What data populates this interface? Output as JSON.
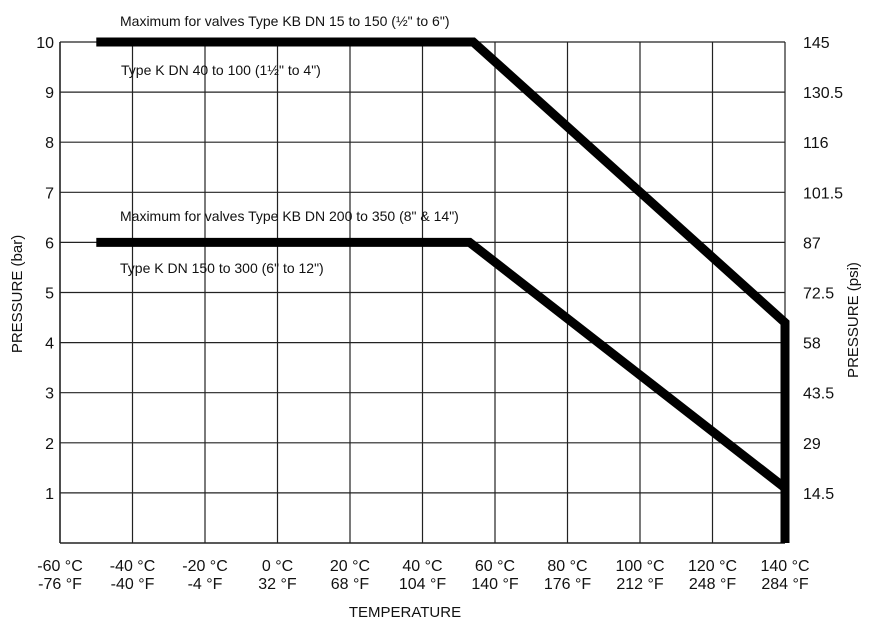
{
  "chart_data": {
    "type": "line",
    "title": "",
    "xlabel": "TEMPERATURE",
    "ylabel": "PRESSURE (bar)",
    "y2label": "PRESSURE (psi)",
    "xlim": [
      -60,
      140
    ],
    "ylim": [
      0,
      10
    ],
    "grid": true,
    "x_ticks_c": [
      "-60 °C",
      "-40 °C",
      "-20 °C",
      "0 °C",
      "20 °C",
      "40 °C",
      "60 °C",
      "80 °C",
      "100 °C",
      "120 °C",
      "140 °C"
    ],
    "x_ticks_f": [
      "-76 °F",
      "-40 °F",
      "-4 °F",
      "32 °F",
      "68 °F",
      "104 °F",
      "140 °F",
      "176 °F",
      "212 °F",
      "248 °F",
      "284 °F"
    ],
    "y_ticks": [
      "10",
      "9",
      "8",
      "7",
      "6",
      "5",
      "4",
      "3",
      "2",
      "1"
    ],
    "y_ticks_psi": [
      "145",
      "130.5",
      "116",
      "101.5",
      "87",
      "72.5",
      "58",
      "43.5",
      "29",
      "14.5"
    ],
    "series": [
      {
        "x": [
          -50,
          54,
          140,
          140
        ],
        "y": [
          10,
          10,
          4.4,
          0
        ],
        "color": "#000000"
      },
      {
        "x": [
          -50,
          53,
          140
        ],
        "y": [
          6,
          6,
          1.1
        ],
        "color": "#000000"
      }
    ],
    "annotations": [
      "Maximum for valves Type KB DN 15 to 150 (½\" to 6\")",
      "Type K DN 40 to 100 (1½\" to 4\")",
      "Maximum for valves Type KB DN 200 to 350 (8\" & 14\")",
      "Type K DN 150 to 300 (6\" to 12\")"
    ]
  }
}
